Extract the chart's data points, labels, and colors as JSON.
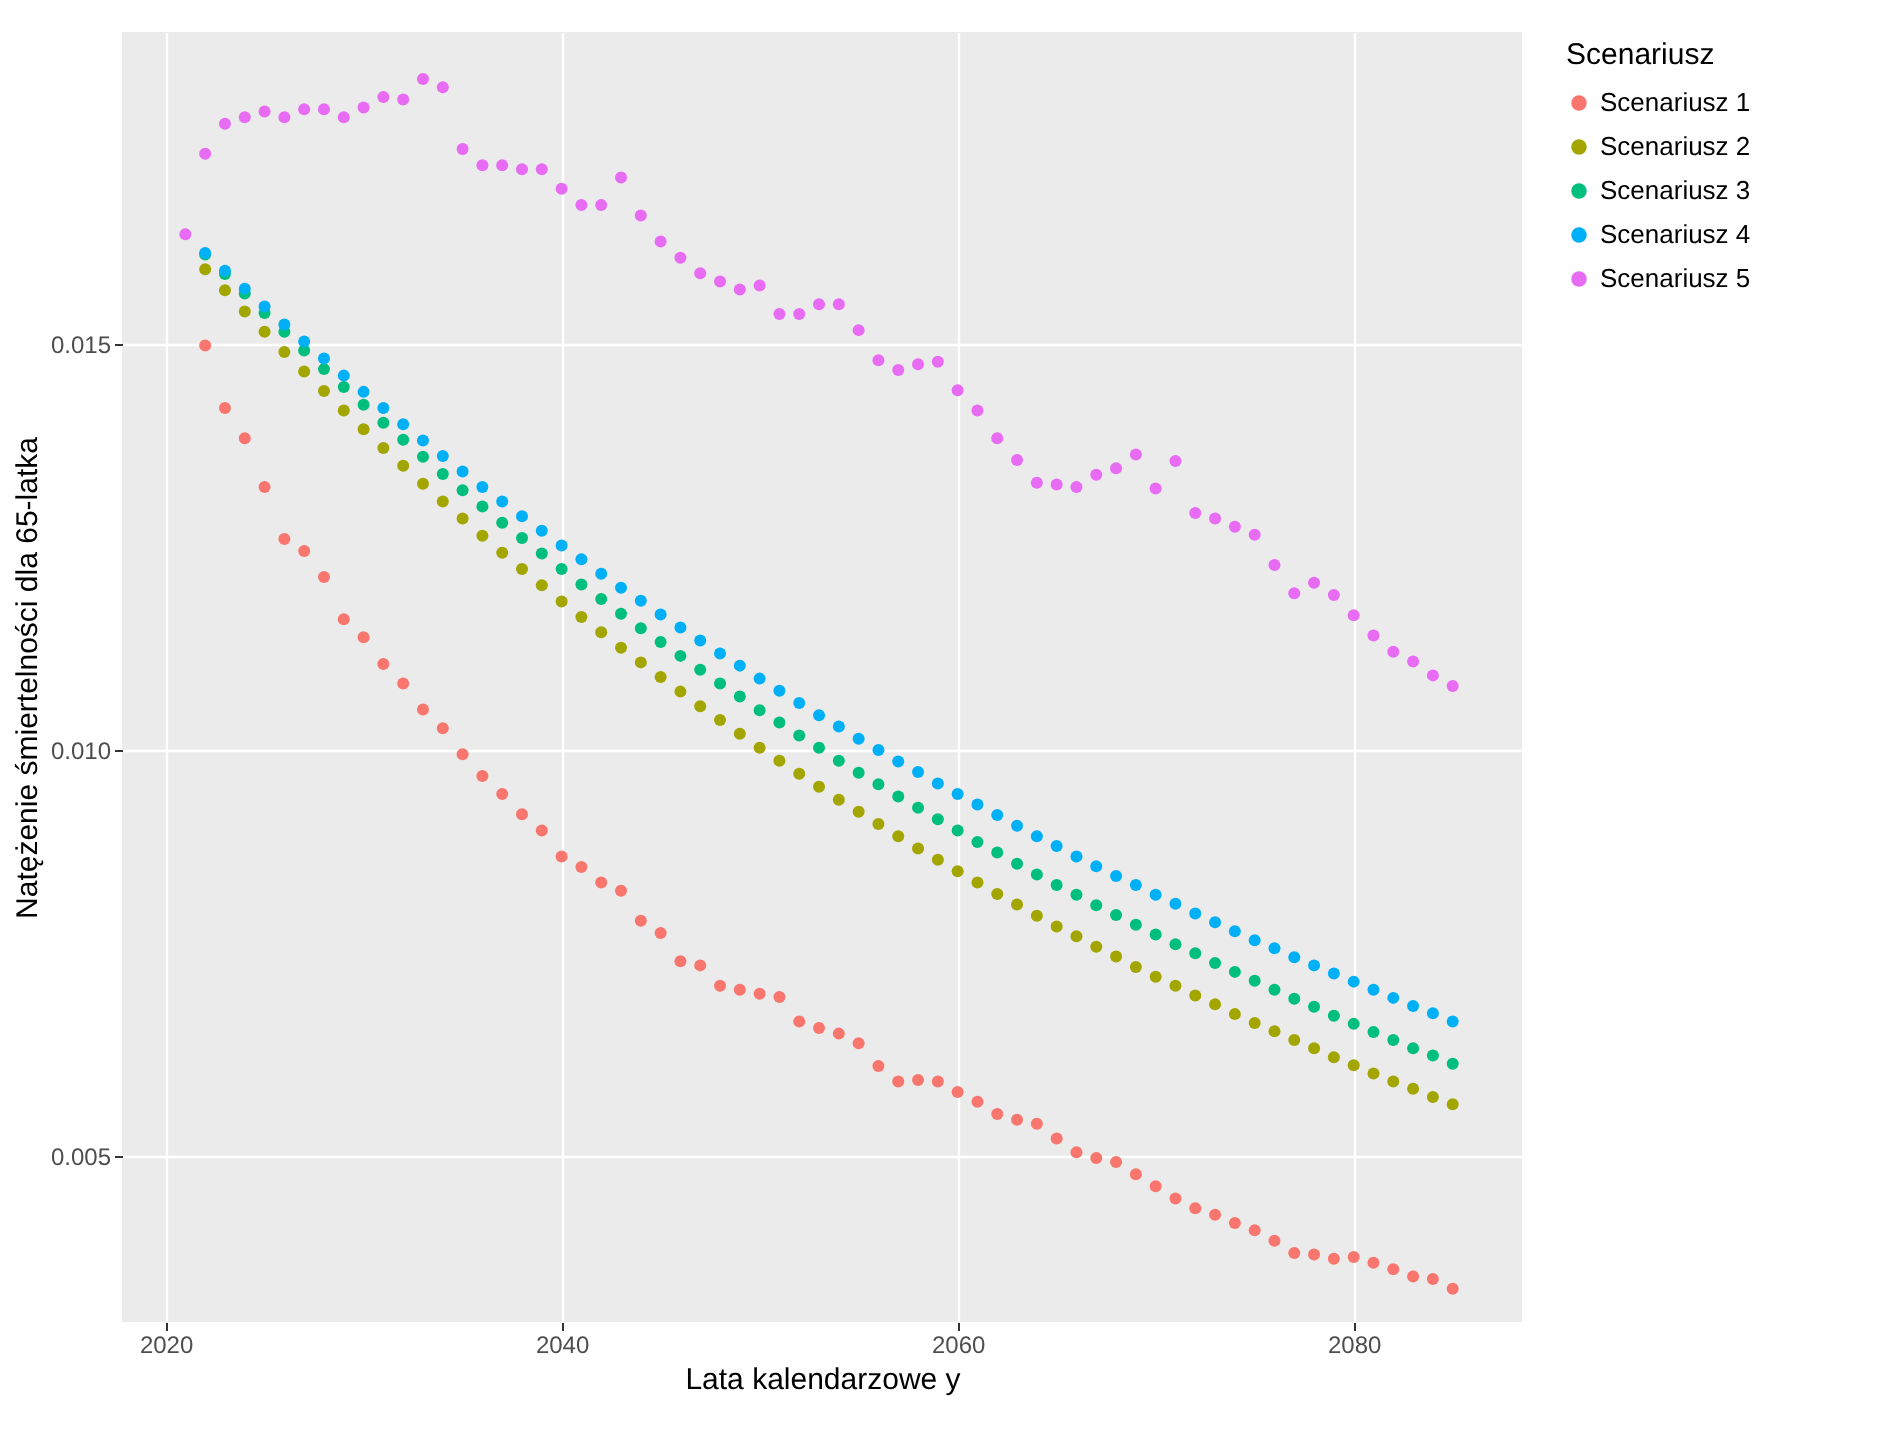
{
  "chart_data": {
    "type": "scatter",
    "xlabel": "Lata kalendarzowe y",
    "ylabel": "Natężenie śmiertelności dla 65-latka",
    "legend_title": "Scenariusz",
    "legend": "right",
    "grid": true,
    "marker": "circle",
    "x": [
      2021,
      2022,
      2023,
      2024,
      2025,
      2026,
      2027,
      2028,
      2029,
      2030,
      2031,
      2032,
      2033,
      2034,
      2035,
      2036,
      2037,
      2038,
      2039,
      2040,
      2041,
      2042,
      2043,
      2044,
      2045,
      2046,
      2047,
      2048,
      2049,
      2050,
      2051,
      2052,
      2053,
      2054,
      2055,
      2056,
      2057,
      2058,
      2059,
      2060,
      2061,
      2062,
      2063,
      2064,
      2065,
      2066,
      2067,
      2068,
      2069,
      2070,
      2071,
      2072,
      2073,
      2074,
      2075,
      2076,
      2077,
      2078,
      2079,
      2080,
      2081,
      2082,
      2083,
      2084,
      2085
    ],
    "xlim": [
      2017.8,
      2088.5
    ],
    "xticks": [
      2020,
      2040,
      2060,
      2080
    ],
    "ylim": [
      0.00296,
      0.01884
    ],
    "yticks": [
      0.005,
      {
        "value": 0.01,
        "label": "0.010"
      },
      0.015
    ],
    "series": [
      {
        "name": "Scenariusz 1",
        "color": "#f8766d",
        "values": [
          null,
          0.01498,
          0.01421,
          0.01384,
          0.01324,
          0.0126,
          0.01245,
          0.01213,
          0.01161,
          0.01139,
          0.01106,
          0.01082,
          0.0105,
          0.01027,
          0.00995,
          0.00968,
          0.00946,
          0.00921,
          0.00901,
          0.00869,
          0.00856,
          0.00837,
          0.00827,
          0.0079,
          0.00775,
          0.0074,
          0.00735,
          0.0071,
          0.00705,
          0.007,
          0.00696,
          0.00666,
          0.00658,
          0.00651,
          0.00639,
          0.00611,
          0.00592,
          0.00594,
          0.00592,
          0.00579,
          0.00567,
          0.00552,
          0.00545,
          0.0054,
          0.00522,
          0.00505,
          0.00498,
          0.00493,
          0.00478,
          0.00463,
          0.00448,
          0.00436,
          0.00428,
          0.00418,
          0.00409,
          0.00396,
          0.00381,
          0.00379,
          0.00374,
          0.00376,
          0.00369,
          0.00361,
          0.00352,
          0.00349,
          0.00337
        ]
      },
      {
        "name": "Scenariusz 2",
        "color": "#a3a500",
        "values": [
          null,
          0.01592,
          0.01566,
          0.0154,
          0.01515,
          0.0149,
          0.01466,
          0.01442,
          0.01418,
          0.01395,
          0.01372,
          0.0135,
          0.01328,
          0.01306,
          0.01285,
          0.01264,
          0.01243,
          0.01223,
          0.01203,
          0.01183,
          0.01164,
          0.01145,
          0.01126,
          0.01108,
          0.0109,
          0.01072,
          0.01054,
          0.01037,
          0.0102,
          0.01003,
          0.00987,
          0.00971,
          0.00955,
          0.00939,
          0.00924,
          0.00909,
          0.00894,
          0.00879,
          0.00865,
          0.00851,
          0.00837,
          0.00823,
          0.0081,
          0.00796,
          0.00783,
          0.00771,
          0.00758,
          0.00746,
          0.00733,
          0.00721,
          0.0071,
          0.00698,
          0.00687,
          0.00675,
          0.00664,
          0.00654,
          0.00643,
          0.00633,
          0.00622,
          0.00612,
          0.00602,
          0.00592,
          0.00583,
          0.00573,
          0.00564
        ]
      },
      {
        "name": "Scenariusz 3",
        "color": "#00bf7d",
        "values": [
          null,
          0.0161,
          0.01586,
          0.01562,
          0.01538,
          0.01515,
          0.01492,
          0.01469,
          0.01447,
          0.01425,
          0.01403,
          0.01382,
          0.01361,
          0.0134,
          0.0132,
          0.013,
          0.0128,
          0.01261,
          0.01242,
          0.01223,
          0.01204,
          0.01186,
          0.01168,
          0.0115,
          0.01133,
          0.01116,
          0.01099,
          0.01082,
          0.01066,
          0.01049,
          0.01034,
          0.01018,
          0.01003,
          0.00987,
          0.00972,
          0.00958,
          0.00943,
          0.00929,
          0.00915,
          0.00901,
          0.00887,
          0.00874,
          0.0086,
          0.00847,
          0.00834,
          0.00822,
          0.00809,
          0.00797,
          0.00785,
          0.00773,
          0.00761,
          0.0075,
          0.00738,
          0.00727,
          0.00716,
          0.00705,
          0.00694,
          0.00684,
          0.00673,
          0.00663,
          0.00653,
          0.00643,
          0.00633,
          0.00624,
          0.00614
        ]
      },
      {
        "name": "Scenariusz 4",
        "color": "#00b0f6",
        "values": [
          null,
          0.01612,
          0.0159,
          0.01568,
          0.01546,
          0.01524,
          0.01503,
          0.01482,
          0.01461,
          0.01441,
          0.01421,
          0.01401,
          0.01381,
          0.01362,
          0.01343,
          0.01324,
          0.01306,
          0.01288,
          0.0127,
          0.01252,
          0.01235,
          0.01217,
          0.012,
          0.01184,
          0.01167,
          0.01151,
          0.01135,
          0.01119,
          0.01104,
          0.01088,
          0.01073,
          0.01058,
          0.01043,
          0.01029,
          0.01014,
          0.01,
          0.00986,
          0.00973,
          0.00959,
          0.00946,
          0.00933,
          0.0092,
          0.00907,
          0.00894,
          0.00882,
          0.00869,
          0.00857,
          0.00845,
          0.00834,
          0.00822,
          0.00811,
          0.00799,
          0.00788,
          0.00777,
          0.00766,
          0.00756,
          0.00745,
          0.00735,
          0.00725,
          0.00715,
          0.00705,
          0.00695,
          0.00685,
          0.00676,
          0.00666
        ]
      },
      {
        "name": "Scenariusz 5",
        "color": "#e76bf3",
        "values": [
          0.01635,
          0.01734,
          0.01771,
          0.01779,
          0.01786,
          0.01779,
          0.01789,
          0.01789,
          0.01779,
          0.01791,
          0.01804,
          0.01801,
          0.01826,
          0.01816,
          0.0174,
          0.0172,
          0.0172,
          0.01715,
          0.01715,
          0.01691,
          0.01671,
          0.01671,
          0.01705,
          0.01658,
          0.01626,
          0.01606,
          0.01587,
          0.01577,
          0.01567,
          0.01572,
          0.01537,
          0.01537,
          0.01549,
          0.01549,
          0.01517,
          0.0148,
          0.01468,
          0.01475,
          0.01478,
          0.01443,
          0.01418,
          0.01384,
          0.01357,
          0.01329,
          0.01327,
          0.01324,
          0.01339,
          0.01347,
          0.01364,
          0.01322,
          0.01356,
          0.01292,
          0.01285,
          0.01275,
          0.01265,
          0.01228,
          0.01193,
          0.01206,
          0.01191,
          0.01166,
          0.01141,
          0.01121,
          0.01109,
          0.01092,
          0.01079
        ]
      }
    ]
  }
}
